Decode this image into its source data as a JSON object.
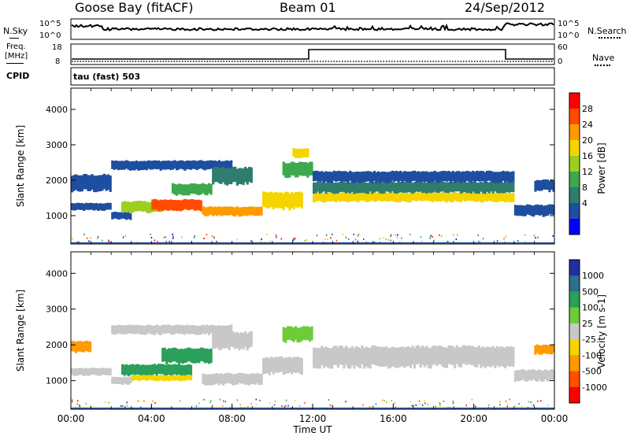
{
  "header": {
    "station": "Goose Bay (fitACF)",
    "beam": "Beam 01",
    "date": "24/Sep/2012"
  },
  "noise_panel": {
    "left_label": "N.Sky",
    "left_ticks": [
      "10^5",
      "10^0"
    ],
    "right_label": "N.Search",
    "right_ticks": [
      "10^5",
      "10^0"
    ]
  },
  "freq_panel": {
    "left_label_line1": "Freq.",
    "left_label_line2": "[MHz]",
    "left_ticks": [
      "18",
      "8"
    ],
    "right_label": "Nave",
    "right_ticks": [
      "60",
      "0"
    ],
    "cpid_label": "CPID",
    "cpid_value": "tau (fast) 503"
  },
  "power_colorbar": {
    "label": "Power [dB]",
    "ticks": [
      "28",
      "24",
      "20",
      "16",
      "12",
      "8",
      "4"
    ],
    "colors": [
      "#ff0000",
      "#ff4b00",
      "#ff9a00",
      "#f5d400",
      "#9ccf1e",
      "#3ea84e",
      "#2e7d6e",
      "#1e4ea0",
      "#0000ff"
    ]
  },
  "velocity_colorbar": {
    "label": "Velocity [m s-1]",
    "ticks": [
      "1000",
      "500",
      "100",
      "25",
      "-25",
      "-100",
      "-500",
      "-1000"
    ],
    "colors": [
      "#2030a0",
      "#2e6e8e",
      "#2aa05a",
      "#6ccc3a",
      "#c8c8c8",
      "#f5d400",
      "#ff9a00",
      "#ff5000",
      "#ff0000"
    ]
  },
  "chart_data": [
    {
      "type": "heatmap",
      "name": "power",
      "ylabel": "Slant Range [km]",
      "yticks": [
        1000,
        2000,
        3000,
        4000
      ],
      "ylim": [
        200,
        4600
      ],
      "xlim": [
        0,
        24
      ],
      "grid": false,
      "bands": [
        {
          "t0": 0.0,
          "t1": 2.0,
          "r0": 1150,
          "r1": 1350,
          "level": 7
        },
        {
          "t0": 0.0,
          "t1": 2.0,
          "r0": 1700,
          "r1": 2150,
          "level": 7
        },
        {
          "t0": 2.0,
          "t1": 3.0,
          "r0": 900,
          "r1": 1100,
          "level": 7
        },
        {
          "t0": 2.0,
          "t1": 8.0,
          "r0": 2300,
          "r1": 2550,
          "level": 7
        },
        {
          "t0": 2.5,
          "t1": 4.5,
          "r0": 1100,
          "r1": 1400,
          "level": 4
        },
        {
          "t0": 4.0,
          "t1": 6.5,
          "r0": 1150,
          "r1": 1450,
          "level": 1
        },
        {
          "t0": 5.0,
          "t1": 7.0,
          "r0": 1600,
          "r1": 1900,
          "level": 5
        },
        {
          "t0": 6.5,
          "t1": 9.5,
          "r0": 1000,
          "r1": 1250,
          "level": 2
        },
        {
          "t0": 7.0,
          "t1": 9.0,
          "r0": 1900,
          "r1": 2350,
          "level": 6
        },
        {
          "t0": 9.5,
          "t1": 11.5,
          "r0": 1200,
          "r1": 1650,
          "level": 3
        },
        {
          "t0": 10.5,
          "t1": 12.0,
          "r0": 2100,
          "r1": 2500,
          "level": 5
        },
        {
          "t0": 11.0,
          "t1": 11.8,
          "r0": 2650,
          "r1": 2900,
          "level": 3
        },
        {
          "t0": 12.0,
          "t1": 22.0,
          "r0": 1400,
          "r1": 1650,
          "level": 3
        },
        {
          "t0": 12.0,
          "t1": 22.0,
          "r0": 1650,
          "r1": 1950,
          "level": 6
        },
        {
          "t0": 12.0,
          "t1": 22.0,
          "r0": 1950,
          "r1": 2250,
          "level": 7
        },
        {
          "t0": 22.0,
          "t1": 24.0,
          "r0": 1000,
          "r1": 1300,
          "level": 7
        },
        {
          "t0": 23.0,
          "t1": 24.0,
          "r0": 1700,
          "r1": 2000,
          "level": 7
        }
      ]
    },
    {
      "type": "heatmap",
      "name": "velocity",
      "ylabel": "Slant Range [km]",
      "yticks": [
        1000,
        2000,
        3000,
        4000
      ],
      "ylim": [
        200,
        4600
      ],
      "xlim": [
        0,
        24
      ],
      "xlabel": "Time UT",
      "xticks": [
        "00:00",
        "04:00",
        "08:00",
        "12:00",
        "16:00",
        "20:00",
        "00:00"
      ],
      "grid": false,
      "bands": [
        {
          "t0": 0.0,
          "t1": 1.0,
          "r0": 1800,
          "r1": 2100,
          "level": 6
        },
        {
          "t0": 0.0,
          "t1": 2.0,
          "r0": 1150,
          "r1": 1350,
          "level": 4
        },
        {
          "t0": 2.0,
          "t1": 3.0,
          "r0": 900,
          "r1": 1100,
          "level": 4
        },
        {
          "t0": 2.0,
          "t1": 8.0,
          "r0": 2300,
          "r1": 2550,
          "level": 4
        },
        {
          "t0": 2.5,
          "t1": 6.0,
          "r0": 1150,
          "r1": 1450,
          "level": 2
        },
        {
          "t0": 4.5,
          "t1": 7.0,
          "r0": 1500,
          "r1": 1900,
          "level": 2
        },
        {
          "t0": 3.0,
          "t1": 6.0,
          "r0": 1000,
          "r1": 1150,
          "level": 5
        },
        {
          "t0": 6.5,
          "t1": 9.5,
          "r0": 900,
          "r1": 1200,
          "level": 4
        },
        {
          "t0": 7.0,
          "t1": 9.0,
          "r0": 1900,
          "r1": 2350,
          "level": 4
        },
        {
          "t0": 9.5,
          "t1": 11.5,
          "r0": 1200,
          "r1": 1650,
          "level": 4
        },
        {
          "t0": 10.5,
          "t1": 12.0,
          "r0": 2100,
          "r1": 2500,
          "level": 3
        },
        {
          "t0": 12.0,
          "t1": 22.0,
          "r0": 1400,
          "r1": 1950,
          "level": 4
        },
        {
          "t0": 22.0,
          "t1": 24.0,
          "r0": 1000,
          "r1": 1300,
          "level": 4
        },
        {
          "t0": 23.0,
          "t1": 24.0,
          "r0": 1750,
          "r1": 2000,
          "level": 6
        }
      ]
    }
  ]
}
